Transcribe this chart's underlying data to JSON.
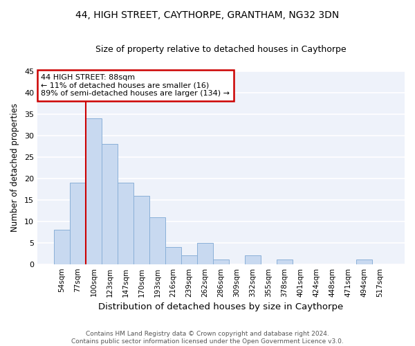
{
  "title_line1": "44, HIGH STREET, CAYTHORPE, GRANTHAM, NG32 3DN",
  "title_line2": "Size of property relative to detached houses in Caythorpe",
  "xlabel": "Distribution of detached houses by size in Caythorpe",
  "ylabel": "Number of detached properties",
  "categories": [
    "54sqm",
    "77sqm",
    "100sqm",
    "123sqm",
    "147sqm",
    "170sqm",
    "193sqm",
    "216sqm",
    "239sqm",
    "262sqm",
    "286sqm",
    "309sqm",
    "332sqm",
    "355sqm",
    "378sqm",
    "401sqm",
    "424sqm",
    "448sqm",
    "471sqm",
    "494sqm",
    "517sqm"
  ],
  "values": [
    8,
    19,
    34,
    28,
    19,
    16,
    11,
    4,
    2,
    5,
    1,
    0,
    2,
    0,
    1,
    0,
    0,
    0,
    0,
    1,
    0
  ],
  "bar_color": "#c8d9f0",
  "bar_edge_color": "#8ab0d8",
  "ylim": [
    0,
    45
  ],
  "yticks": [
    0,
    5,
    10,
    15,
    20,
    25,
    30,
    35,
    40,
    45
  ],
  "property_label": "44 HIGH STREET: 88sqm",
  "annotation_line1": "← 11% of detached houses are smaller (16)",
  "annotation_line2": "89% of semi-detached houses are larger (134) →",
  "vline_x": 1.5,
  "vline_color": "#cc0000",
  "annotation_box_color": "#ffffff",
  "annotation_box_edge_color": "#cc0000",
  "footer_line1": "Contains HM Land Registry data © Crown copyright and database right 2024.",
  "footer_line2": "Contains public sector information licensed under the Open Government Licence v3.0.",
  "background_color": "#ffffff",
  "plot_bg_color": "#eef2fa",
  "grid_color": "#ffffff"
}
